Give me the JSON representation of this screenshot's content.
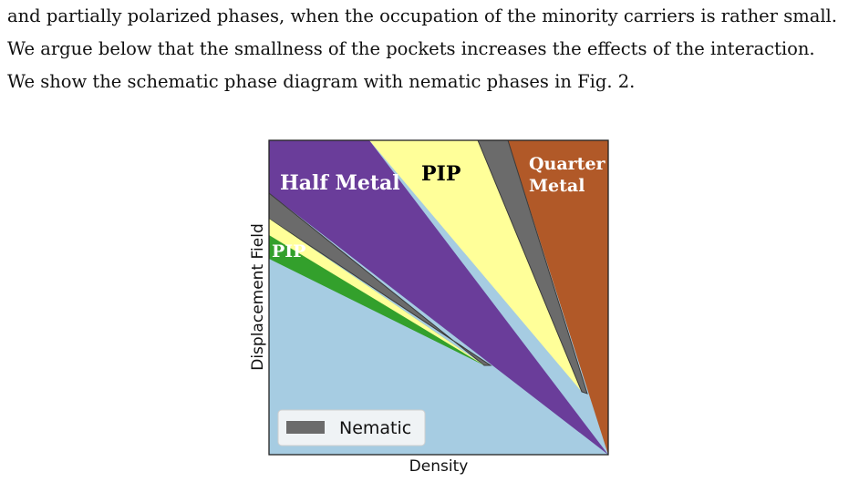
{
  "paragraph": {
    "line1": "and partially polarized phases, when the occupation of the minority carriers is rather small.",
    "line2": "We argue below that the smallness of the pockets increases the effects of the interaction.",
    "line3": "We show the schematic phase diagram with nematic phases in Fig. 2."
  },
  "figure": {
    "xlabel": "Density",
    "ylabel": "Displacement Field",
    "regions": {
      "half_metal": "Half Metal",
      "pip_top": "PIP",
      "quarter_metal_line1": "Quarter",
      "quarter_metal_line2": "Metal",
      "pip_left": "PIP"
    },
    "legend": {
      "label": "Nematic",
      "placement": "lower-left"
    },
    "colors": {
      "background_phase": "#a6cce2",
      "half_metal": "#6a3d9a",
      "pip_yellow": "#ffff99",
      "quarter_metal": "#b15928",
      "pip_green": "#33a02c",
      "nematic": "#6b6b6b"
    }
  }
}
